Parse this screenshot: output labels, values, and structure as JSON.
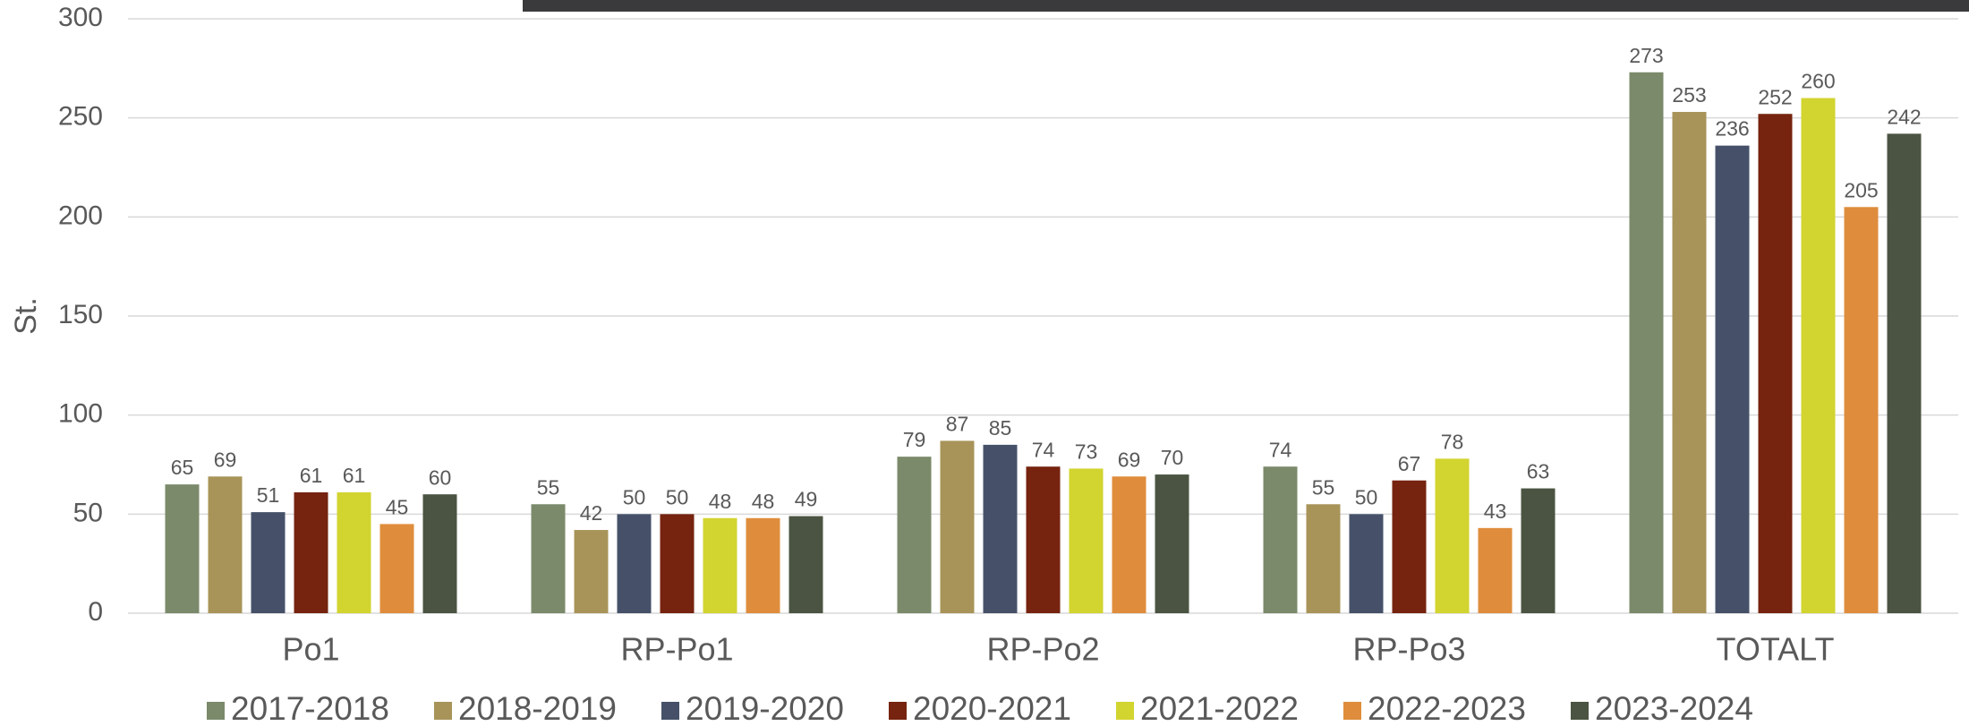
{
  "chart_data": {
    "type": "bar",
    "y_label": "St.",
    "categories": [
      "Po1",
      "RP-Po1",
      "RP-Po2",
      "RP-Po3",
      "TOTALT"
    ],
    "series": [
      {
        "name": "2017-2018",
        "color": "#7b8a6a",
        "values": [
          65,
          55,
          79,
          74,
          273
        ]
      },
      {
        "name": "2018-2019",
        "color": "#a89459",
        "values": [
          69,
          42,
          87,
          55,
          253
        ]
      },
      {
        "name": "2019-2020",
        "color": "#465169",
        "values": [
          51,
          50,
          85,
          50,
          236
        ]
      },
      {
        "name": "2020-2021",
        "color": "#76230f",
        "values": [
          61,
          50,
          74,
          67,
          252
        ]
      },
      {
        "name": "2021-2022",
        "color": "#d2d430",
        "values": [
          61,
          48,
          73,
          78,
          260
        ]
      },
      {
        "name": "2022-2023",
        "color": "#df8d3c",
        "values": [
          45,
          48,
          69,
          43,
          205
        ]
      },
      {
        "name": "2023-2024",
        "color": "#4b5442",
        "values": [
          60,
          49,
          70,
          63,
          242
        ]
      }
    ],
    "ylim": [
      0,
      300
    ],
    "yticks": [
      0,
      50,
      100,
      150,
      200,
      250,
      300
    ],
    "grid": true,
    "legend": "bottom"
  }
}
